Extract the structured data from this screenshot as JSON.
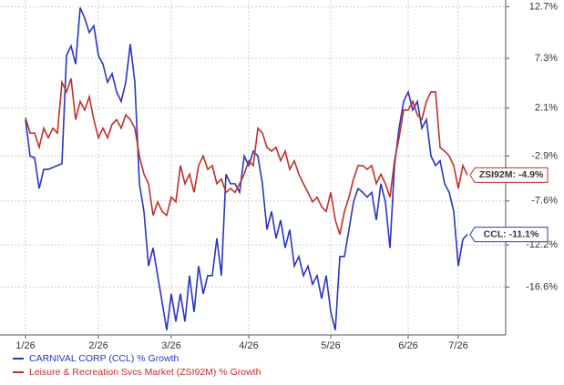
{
  "chart_data": {
    "type": "line",
    "categories": [
      "1/26",
      null,
      null,
      null,
      null,
      null,
      null,
      null,
      null,
      null,
      null,
      null,
      null,
      null,
      null,
      null,
      "2/26",
      null,
      null,
      null,
      null,
      null,
      null,
      null,
      null,
      null,
      null,
      null,
      null,
      null,
      null,
      null,
      "3/26",
      null,
      null,
      null,
      null,
      null,
      null,
      null,
      null,
      null,
      null,
      null,
      null,
      null,
      null,
      null,
      null,
      "4/26",
      null,
      null,
      null,
      null,
      null,
      null,
      null,
      null,
      null,
      null,
      null,
      null,
      null,
      null,
      null,
      null,
      null,
      "5/26",
      null,
      null,
      null,
      null,
      null,
      null,
      null,
      null,
      null,
      null,
      null,
      null,
      null,
      null,
      null,
      null,
      "6/26",
      null,
      null,
      null,
      null,
      null,
      null,
      null,
      null,
      null,
      null,
      "7/26",
      null,
      null
    ],
    "series": [
      {
        "name": "CARNIVAL CORP (CCL) % Growth",
        "color": "#2a35c0",
        "end_label": "CCL: -11.1%",
        "values": [
          0.9,
          -2.9,
          -3.1,
          -6.3,
          -4.3,
          -4.3,
          -4.1,
          -3.9,
          -3.7,
          7.6,
          8.6,
          6.7,
          12.6,
          11.5,
          10.0,
          10.7,
          7.6,
          6.7,
          4.8,
          5.7,
          3.8,
          2.8,
          4.8,
          8.8,
          4.8,
          -5.8,
          -8.7,
          -14.4,
          -12.5,
          -15.4,
          -18.2,
          -21.1,
          -17.3,
          -20.2,
          -17.3,
          -20.2,
          -15.4,
          -19.2,
          -14.4,
          -17.3,
          -15.4,
          -15.4,
          -11.5,
          -15.4,
          -4.8,
          -5.8,
          -5.8,
          -6.7,
          -2.9,
          -3.9,
          -2.4,
          -2.9,
          -5.8,
          -10.6,
          -8.7,
          -11.5,
          -9.6,
          -12.5,
          -10.6,
          -14.4,
          -13.4,
          -15.4,
          -14.4,
          -16.3,
          -15.4,
          -17.8,
          -15.4,
          -19.2,
          -21.1,
          -13.4,
          -13.4,
          -10.6,
          -7.7,
          -6.3,
          -6.7,
          -7.2,
          -6.7,
          -9.6,
          -5.8,
          -7.7,
          -12.5,
          -3.9,
          0.0,
          2.8,
          3.8,
          1.9,
          2.8,
          0.0,
          0.9,
          -2.9,
          -3.9,
          -3.4,
          -5.8,
          -6.7,
          -8.7,
          -14.4,
          -11.6,
          -11.1
        ]
      },
      {
        "name": "Leisure & Recreation Svcs Market (ZSI92M) % Growth",
        "color": "#c0302a",
        "end_label": "ZSI92M: -4.9%",
        "values": [
          1.1,
          -0.5,
          -0.5,
          -2.0,
          0.0,
          -1.0,
          0.0,
          -0.5,
          4.8,
          3.8,
          5.2,
          0.9,
          2.8,
          1.9,
          3.3,
          0.9,
          -1.0,
          0.0,
          -1.0,
          0.4,
          0.9,
          0.0,
          1.4,
          0.9,
          0.0,
          -2.9,
          -4.8,
          -5.8,
          -9.1,
          -7.7,
          -8.7,
          -9.1,
          -7.2,
          -7.7,
          -3.9,
          -5.8,
          -4.8,
          -6.7,
          -3.9,
          -2.9,
          -4.3,
          -3.9,
          -5.8,
          -5.3,
          -6.7,
          -6.3,
          -6.7,
          -5.8,
          -4.8,
          -3.4,
          -3.9,
          0.0,
          -0.5,
          -2.0,
          -2.4,
          -2.0,
          -3.4,
          -2.4,
          -4.3,
          -3.4,
          -4.8,
          -5.8,
          -6.7,
          -7.7,
          -7.2,
          -8.2,
          -8.7,
          -6.7,
          -9.6,
          -11.1,
          -8.7,
          -7.2,
          -5.3,
          -3.9,
          -3.9,
          -4.3,
          -3.9,
          -5.8,
          -4.8,
          -5.8,
          -7.2,
          -3.4,
          -1.0,
          1.9,
          1.9,
          2.8,
          1.4,
          0.9,
          2.8,
          3.8,
          3.8,
          -2.0,
          -2.4,
          -2.9,
          -3.9,
          -6.3,
          -3.9,
          -4.9
        ]
      }
    ],
    "ylim": [
      -21.6,
      13.4
    ],
    "yticks": [
      {
        "value": 12.7,
        "label": "12.7%"
      },
      {
        "value": 7.3,
        "label": "7.3%"
      },
      {
        "value": 2.1,
        "label": "2.1%"
      },
      {
        "value": -2.9,
        "label": "-2.9%"
      },
      {
        "value": -7.6,
        "label": "-7.6%"
      },
      {
        "value": -12.2,
        "label": "-12.2%"
      },
      {
        "value": -16.6,
        "label": "-16.6%"
      }
    ],
    "grid": true,
    "legend": "bottom-left"
  }
}
